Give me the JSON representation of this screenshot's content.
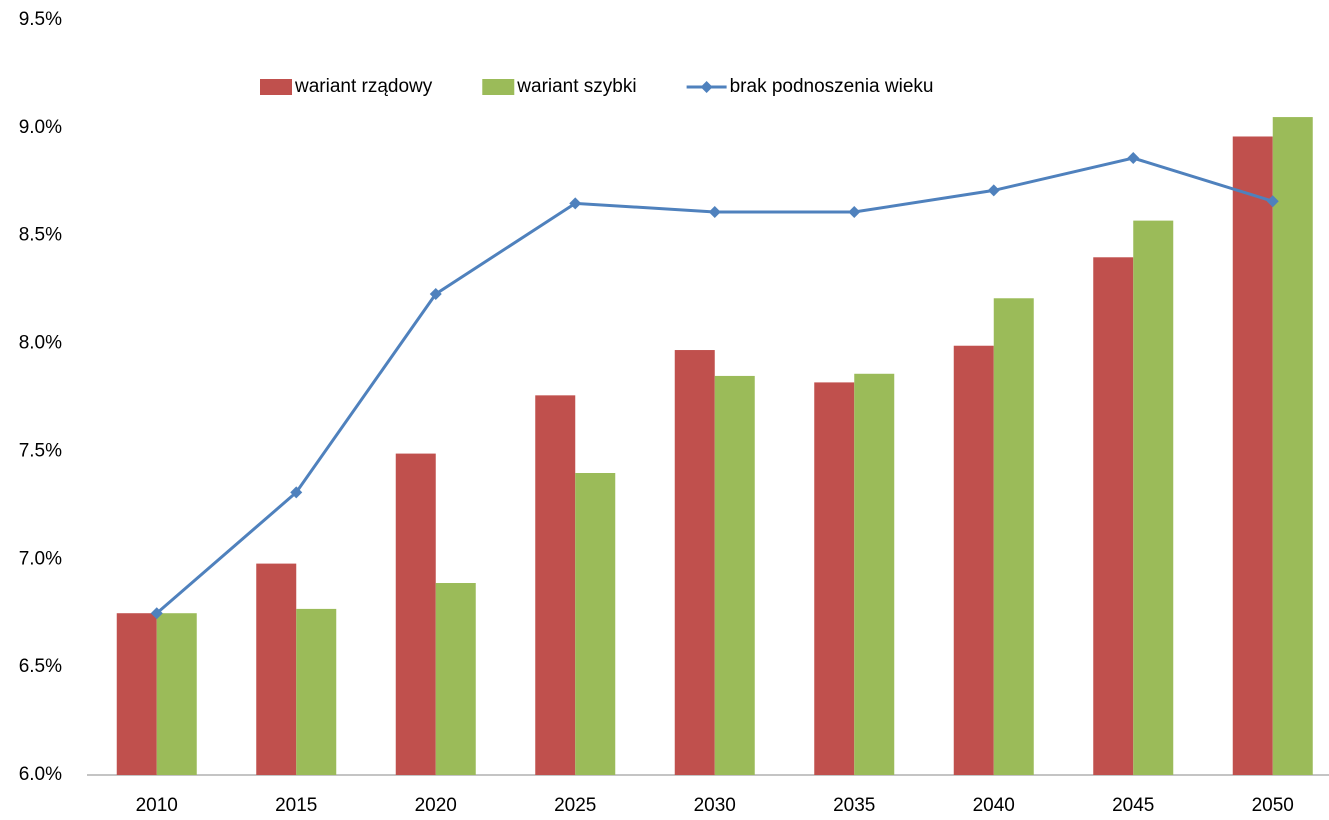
{
  "chart_data": {
    "type": "bar",
    "categories": [
      "2010",
      "2015",
      "2020",
      "2025",
      "2030",
      "2035",
      "2040",
      "2045",
      "2050"
    ],
    "series": [
      {
        "name": "wariant rządowy",
        "type": "bar",
        "color": "#c0504d",
        "values": [
          6.75,
          6.98,
          7.49,
          7.76,
          7.97,
          7.82,
          7.99,
          8.4,
          8.96
        ]
      },
      {
        "name": "wariant szybki",
        "type": "bar",
        "color": "#9bbb59",
        "values": [
          6.75,
          6.77,
          6.89,
          7.4,
          7.85,
          7.86,
          8.21,
          8.57,
          9.05
        ]
      },
      {
        "name": "brak podnoszenia wieku",
        "type": "line",
        "color": "#4f81bd",
        "values": [
          6.75,
          7.31,
          8.23,
          8.65,
          8.61,
          8.61,
          8.71,
          8.86,
          8.66
        ]
      }
    ],
    "ylim": [
      6.0,
      9.5
    ],
    "yticks": [
      {
        "value": 6.0,
        "label": "6.0%"
      },
      {
        "value": 6.5,
        "label": "6.5%"
      },
      {
        "value": 7.0,
        "label": "7.0%"
      },
      {
        "value": 7.5,
        "label": "7.5%"
      },
      {
        "value": 8.0,
        "label": "8.0%"
      },
      {
        "value": 8.5,
        "label": "8.5%"
      },
      {
        "value": 9.0,
        "label": "9.0%"
      },
      {
        "value": 9.5,
        "label": "9.5%"
      }
    ],
    "grid": false,
    "legend": "top"
  }
}
